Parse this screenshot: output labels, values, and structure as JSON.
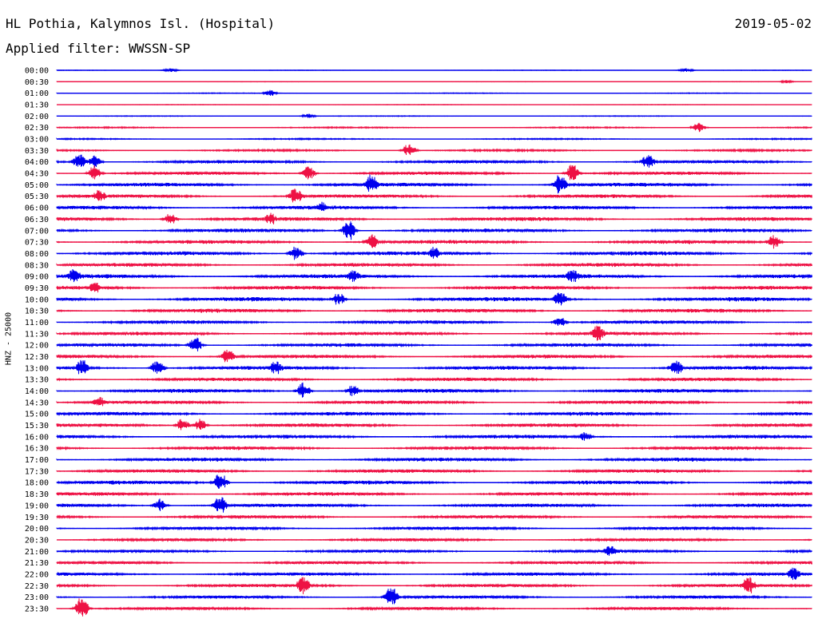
{
  "header": {
    "station": "HL Pothia, Kalymnos Isl. (Hospital)",
    "date": "2019-05-02",
    "filter": "Applied filter: WWSSN-SP",
    "channel": "HNZ - 25000"
  },
  "colors": {
    "even_trace": "#0000ee",
    "odd_trace": "#ee1144"
  },
  "chart_data": {
    "type": "line",
    "title": "HL Pothia, Kalymnos Isl. (Hospital)",
    "subtitle": "Applied filter: WWSSN-SP",
    "date": "2019-05-02",
    "ylabel": "HNZ - 25000",
    "row_labels": [
      "00:00",
      "00:30",
      "01:00",
      "01:30",
      "02:00",
      "02:30",
      "03:00",
      "03:30",
      "04:00",
      "04:30",
      "05:00",
      "05:30",
      "06:00",
      "06:30",
      "07:00",
      "07:30",
      "08:00",
      "08:30",
      "09:00",
      "09:30",
      "10:00",
      "10:30",
      "11:00",
      "11:30",
      "12:00",
      "12:30",
      "13:00",
      "13:30",
      "14:00",
      "14:30",
      "15:00",
      "15:30",
      "16:00",
      "16:30",
      "17:00",
      "17:30",
      "18:00",
      "18:30",
      "19:00",
      "19:30",
      "20:00",
      "20:30",
      "21:00",
      "21:30",
      "22:00",
      "22:30",
      "23:00",
      "23:30"
    ],
    "row_minutes": 30,
    "noise_level": [
      0.3,
      0.3,
      0.5,
      0.3,
      0.5,
      0.8,
      0.8,
      1.2,
      2.2,
      2.2,
      2.6,
      2.4,
      2.6,
      2.6,
      2.6,
      2.6,
      2.8,
      2.6,
      2.8,
      2.6,
      2.8,
      2.6,
      2.4,
      2.4,
      2.4,
      2.4,
      2.6,
      2.4,
      2.6,
      2.4,
      2.6,
      2.4,
      2.6,
      2.4,
      2.6,
      2.4,
      2.6,
      2.4,
      2.4,
      2.2,
      2.2,
      2.0,
      2.0,
      2.0,
      2.2,
      2.2,
      2.0,
      2.0
    ],
    "events": [
      {
        "row": 0,
        "minute": 4.5,
        "amplitude": 3
      },
      {
        "row": 0,
        "minute": 25,
        "amplitude": 3
      },
      {
        "row": 1,
        "minute": 29,
        "amplitude": 2
      },
      {
        "row": 2,
        "minute": 8.5,
        "amplitude": 4
      },
      {
        "row": 4,
        "minute": 10,
        "amplitude": 3
      },
      {
        "row": 5,
        "minute": 25.5,
        "amplitude": 6
      },
      {
        "row": 7,
        "minute": 14,
        "amplitude": 9
      },
      {
        "row": 8,
        "minute": 0.9,
        "amplitude": 12
      },
      {
        "row": 8,
        "minute": 1.5,
        "amplitude": 8
      },
      {
        "row": 8,
        "minute": 23.5,
        "amplitude": 11
      },
      {
        "row": 9,
        "minute": 1.5,
        "amplitude": 10
      },
      {
        "row": 9,
        "minute": 10,
        "amplitude": 9
      },
      {
        "row": 9,
        "minute": 20.5,
        "amplitude": 12
      },
      {
        "row": 10,
        "minute": 12.5,
        "amplitude": 14
      },
      {
        "row": 10,
        "minute": 20,
        "amplitude": 14
      },
      {
        "row": 11,
        "minute": 1.7,
        "amplitude": 9
      },
      {
        "row": 11,
        "minute": 9.5,
        "amplitude": 12
      },
      {
        "row": 12,
        "minute": 10.5,
        "amplitude": 8
      },
      {
        "row": 13,
        "minute": 4.5,
        "amplitude": 8
      },
      {
        "row": 13,
        "minute": 8.5,
        "amplitude": 8
      },
      {
        "row": 14,
        "minute": 11.6,
        "amplitude": 13
      },
      {
        "row": 15,
        "minute": 12.5,
        "amplitude": 11
      },
      {
        "row": 15,
        "minute": 28.5,
        "amplitude": 9
      },
      {
        "row": 16,
        "minute": 9.5,
        "amplitude": 10
      },
      {
        "row": 16,
        "minute": 15,
        "amplitude": 9
      },
      {
        "row": 18,
        "minute": 0.7,
        "amplitude": 12
      },
      {
        "row": 18,
        "minute": 11.8,
        "amplitude": 9
      },
      {
        "row": 18,
        "minute": 20.5,
        "amplitude": 10
      },
      {
        "row": 19,
        "minute": 1.5,
        "amplitude": 8
      },
      {
        "row": 20,
        "minute": 11.2,
        "amplitude": 9
      },
      {
        "row": 20,
        "minute": 20,
        "amplitude": 11
      },
      {
        "row": 22,
        "minute": 20,
        "amplitude": 7
      },
      {
        "row": 23,
        "minute": 21.5,
        "amplitude": 13
      },
      {
        "row": 24,
        "minute": 5.5,
        "amplitude": 11
      },
      {
        "row": 25,
        "minute": 6.8,
        "amplitude": 10
      },
      {
        "row": 26,
        "minute": 1,
        "amplitude": 12
      },
      {
        "row": 26,
        "minute": 4,
        "amplitude": 10
      },
      {
        "row": 26,
        "minute": 8.7,
        "amplitude": 9
      },
      {
        "row": 26,
        "minute": 24.6,
        "amplitude": 12
      },
      {
        "row": 28,
        "minute": 9.8,
        "amplitude": 11
      },
      {
        "row": 28,
        "minute": 11.8,
        "amplitude": 9
      },
      {
        "row": 29,
        "minute": 1.7,
        "amplitude": 8
      },
      {
        "row": 31,
        "minute": 5,
        "amplitude": 9
      },
      {
        "row": 31,
        "minute": 5.7,
        "amplitude": 9
      },
      {
        "row": 32,
        "minute": 21,
        "amplitude": 7
      },
      {
        "row": 36,
        "minute": 6.5,
        "amplitude": 14
      },
      {
        "row": 38,
        "minute": 4.1,
        "amplitude": 9
      },
      {
        "row": 38,
        "minute": 6.5,
        "amplitude": 13
      },
      {
        "row": 42,
        "minute": 22,
        "amplitude": 8
      },
      {
        "row": 44,
        "minute": 29.3,
        "amplitude": 9
      },
      {
        "row": 45,
        "minute": 9.8,
        "amplitude": 14
      },
      {
        "row": 45,
        "minute": 27.5,
        "amplitude": 13
      },
      {
        "row": 46,
        "minute": 13.3,
        "amplitude": 14
      },
      {
        "row": 47,
        "minute": 1,
        "amplitude": 16
      }
    ]
  }
}
